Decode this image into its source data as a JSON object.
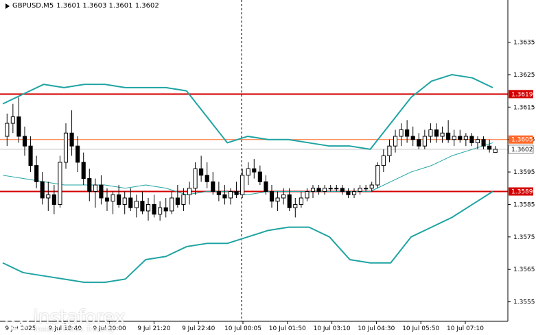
{
  "header": {
    "symbol": "GBPUSD,M5",
    "ohlc": "1.3601 1.3603 1.3601 1.3602"
  },
  "watermark": {
    "brand": "instaforex",
    "tagline": "Instant Forex Trading"
  },
  "chart_data": {
    "type": "candlestick",
    "ylim": [
      1.3549,
      1.3648
    ],
    "y_ticks": [
      "1.3635",
      "1.3625",
      "1.3615",
      "1.3605",
      "1.3595",
      "1.3585",
      "1.3575",
      "1.3565",
      "1.3555"
    ],
    "x_ticks": [
      "9 Jul 2025",
      "9 Jul 18:40",
      "9 Jul 20:00",
      "9 Jul 21:20",
      "9 Jul 22:40",
      "10 Jul 00:05",
      "10 Jul 01:50",
      "10 Jul 03:10",
      "10 Jul 04:30",
      "10 Jul 05:50",
      "10 Jul 07:10"
    ],
    "horizontal_levels": [
      {
        "value": 1.3619,
        "label": "1.3619",
        "color": "#d40000"
      },
      {
        "value": 1.3605,
        "label": "1.3605",
        "color": "#ff6a2a"
      },
      {
        "value": 1.3602,
        "label": "1.3602",
        "color": "#c0c0c0"
      },
      {
        "value": 1.3589,
        "label": "1.3589",
        "color": "#d40000"
      }
    ],
    "day_separator": "10 Jul 00:05",
    "bollinger_upper": [
      1.3616,
      1.3619,
      1.3622,
      1.3621,
      1.3622,
      1.3622,
      1.3621,
      1.3621,
      1.3621,
      1.362,
      1.3612,
      1.3604,
      1.3606,
      1.3605,
      1.3605,
      1.3604,
      1.3603,
      1.3603,
      1.3602,
      1.361,
      1.3618,
      1.3623,
      1.3625,
      1.3624,
      1.3621
    ],
    "bollinger_middle": [
      1.3594,
      1.3593,
      1.3592,
      1.3591,
      1.3591,
      1.3591,
      1.359,
      1.3591,
      1.359,
      1.3588,
      1.3589,
      1.3589,
      1.3588,
      1.3589,
      1.3589,
      1.3589,
      1.3589,
      1.3589,
      1.3589,
      1.3592,
      1.3595,
      1.3597,
      1.36,
      1.3602,
      1.3604
    ],
    "bollinger_lower": [
      1.3567,
      1.3564,
      1.3563,
      1.3562,
      1.3561,
      1.3561,
      1.3562,
      1.3568,
      1.3569,
      1.3572,
      1.3573,
      1.3573,
      1.3575,
      1.3577,
      1.3578,
      1.3578,
      1.3575,
      1.3568,
      1.3567,
      1.3567,
      1.3575,
      1.3578,
      1.3581,
      1.3585,
      1.3589
    ],
    "candles": [
      [
        1.3606,
        1.3613,
        1.3603,
        1.361
      ],
      [
        1.361,
        1.3616,
        1.3607,
        1.3612
      ],
      [
        1.3612,
        1.3618,
        1.3604,
        1.3606
      ],
      [
        1.3606,
        1.3609,
        1.36,
        1.3603
      ],
      [
        1.3603,
        1.3606,
        1.3595,
        1.3597
      ],
      [
        1.3597,
        1.36,
        1.359,
        1.3592
      ],
      [
        1.3592,
        1.3595,
        1.3585,
        1.3587
      ],
      [
        1.3587,
        1.3592,
        1.3583,
        1.3588
      ],
      [
        1.3588,
        1.3591,
        1.3582,
        1.3585
      ],
      [
        1.3585,
        1.36,
        1.3584,
        1.3598
      ],
      [
        1.3598,
        1.361,
        1.3596,
        1.3607
      ],
      [
        1.3607,
        1.3614,
        1.36,
        1.3603
      ],
      [
        1.3603,
        1.3606,
        1.3595,
        1.3598
      ],
      [
        1.3598,
        1.3601,
        1.3591,
        1.3593
      ],
      [
        1.3593,
        1.3596,
        1.3586,
        1.3589
      ],
      [
        1.3589,
        1.3593,
        1.3584,
        1.3591
      ],
      [
        1.3591,
        1.3594,
        1.3585,
        1.3587
      ],
      [
        1.3587,
        1.359,
        1.3583,
        1.3586
      ],
      [
        1.3586,
        1.3589,
        1.3582,
        1.3588
      ],
      [
        1.3588,
        1.3591,
        1.3584,
        1.3585
      ],
      [
        1.3585,
        1.3589,
        1.3582,
        1.3587
      ],
      [
        1.3587,
        1.359,
        1.3583,
        1.3584
      ],
      [
        1.3584,
        1.3588,
        1.3581,
        1.3586
      ],
      [
        1.3586,
        1.3589,
        1.3582,
        1.3583
      ],
      [
        1.3583,
        1.3587,
        1.358,
        1.3585
      ],
      [
        1.3585,
        1.3588,
        1.3581,
        1.3582
      ],
      [
        1.3582,
        1.3586,
        1.358,
        1.3584
      ],
      [
        1.3584,
        1.3587,
        1.3581,
        1.3583
      ],
      [
        1.3583,
        1.3589,
        1.3582,
        1.3587
      ],
      [
        1.3587,
        1.3591,
        1.3584,
        1.3585
      ],
      [
        1.3585,
        1.359,
        1.3583,
        1.3588
      ],
      [
        1.3588,
        1.3592,
        1.3585,
        1.359
      ],
      [
        1.359,
        1.3598,
        1.3588,
        1.3596
      ],
      [
        1.3596,
        1.36,
        1.3592,
        1.3594
      ],
      [
        1.3594,
        1.3598,
        1.359,
        1.3592
      ],
      [
        1.3592,
        1.3595,
        1.3588,
        1.3589
      ],
      [
        1.3589,
        1.3592,
        1.3586,
        1.3588
      ],
      [
        1.3588,
        1.3591,
        1.3585,
        1.3587
      ],
      [
        1.3587,
        1.359,
        1.3585,
        1.3589
      ],
      [
        1.3589,
        1.3592,
        1.3587,
        1.3588
      ],
      [
        1.3588,
        1.3596,
        1.3587,
        1.3594
      ],
      [
        1.3594,
        1.3598,
        1.3591,
        1.3596
      ],
      [
        1.3596,
        1.3599,
        1.3593,
        1.3595
      ],
      [
        1.3595,
        1.3597,
        1.3591,
        1.3592
      ],
      [
        1.3592,
        1.3594,
        1.3588,
        1.3589
      ],
      [
        1.3589,
        1.3591,
        1.3584,
        1.3586
      ],
      [
        1.3586,
        1.3589,
        1.3583,
        1.3587
      ],
      [
        1.3587,
        1.359,
        1.3585,
        1.3588
      ],
      [
        1.3588,
        1.359,
        1.3583,
        1.3584
      ],
      [
        1.3584,
        1.3587,
        1.3581,
        1.3585
      ],
      [
        1.3585,
        1.3589,
        1.3584,
        1.3587
      ],
      [
        1.3587,
        1.359,
        1.3586,
        1.3589
      ],
      [
        1.3589,
        1.3591,
        1.3587,
        1.359
      ],
      [
        1.359,
        1.3591,
        1.3588,
        1.3589
      ],
      [
        1.3589,
        1.3591,
        1.3588,
        1.359
      ],
      [
        1.359,
        1.3591,
        1.3589,
        1.359
      ],
      [
        1.359,
        1.3591,
        1.3589,
        1.359
      ],
      [
        1.359,
        1.3591,
        1.3588,
        1.3589
      ],
      [
        1.3589,
        1.359,
        1.3587,
        1.3588
      ],
      [
        1.3588,
        1.359,
        1.3587,
        1.3589
      ],
      [
        1.3589,
        1.3591,
        1.3588,
        1.359
      ],
      [
        1.359,
        1.3591,
        1.3589,
        1.359
      ],
      [
        1.359,
        1.3592,
        1.3589,
        1.3591
      ],
      [
        1.3591,
        1.3598,
        1.359,
        1.3597
      ],
      [
        1.3597,
        1.3602,
        1.3595,
        1.36
      ],
      [
        1.36,
        1.3605,
        1.3598,
        1.3603
      ],
      [
        1.3603,
        1.3608,
        1.3601,
        1.3606
      ],
      [
        1.3606,
        1.361,
        1.3603,
        1.3608
      ],
      [
        1.3608,
        1.3611,
        1.3604,
        1.3606
      ],
      [
        1.3606,
        1.3609,
        1.3603,
        1.3605
      ],
      [
        1.3605,
        1.3607,
        1.3602,
        1.3603
      ],
      [
        1.3603,
        1.3608,
        1.3602,
        1.3606
      ],
      [
        1.3606,
        1.361,
        1.3604,
        1.3608
      ],
      [
        1.3608,
        1.361,
        1.3604,
        1.3606
      ],
      [
        1.3606,
        1.3609,
        1.3604,
        1.3607
      ],
      [
        1.3607,
        1.3611,
        1.3604,
        1.3605
      ],
      [
        1.3605,
        1.3608,
        1.3603,
        1.3606
      ],
      [
        1.3606,
        1.3608,
        1.3604,
        1.3605
      ],
      [
        1.3605,
        1.3607,
        1.3603,
        1.3606
      ],
      [
        1.3606,
        1.3607,
        1.3603,
        1.3604
      ],
      [
        1.3604,
        1.3606,
        1.3602,
        1.3605
      ],
      [
        1.3605,
        1.3606,
        1.3602,
        1.3603
      ],
      [
        1.3603,
        1.3605,
        1.3601,
        1.3602
      ],
      [
        1.3601,
        1.3603,
        1.3601,
        1.3602
      ]
    ]
  }
}
